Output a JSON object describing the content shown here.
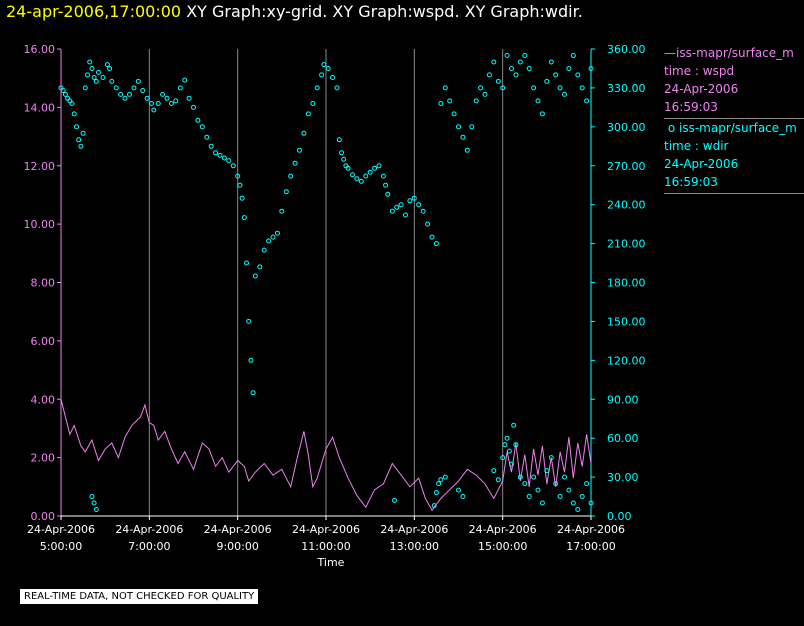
{
  "header": {
    "time_label": "24-apr-2006,17:00:00",
    "graphs_label": "XY Graph:xy-grid.  XY Graph:wspd.  XY Graph:wdir."
  },
  "legend": {
    "series1": {
      "marker": "—",
      "source": "iss-mapr/surface_m",
      "field": "time : wspd",
      "date": "24-Apr-2006",
      "time": "16:59:03"
    },
    "series2": {
      "marker": "o",
      "source": "iss-mapr/surface_m",
      "field": "time : wdir",
      "date": "24-Apr-2006",
      "time": "16:59:03"
    }
  },
  "footer": {
    "note": "REAL-TIME DATA, NOT CHECKED FOR QUALITY"
  },
  "colors": {
    "wspd": "#ee82ee",
    "wdir": "#00ffff",
    "grid": "#888888",
    "title_time": "#ffff00"
  },
  "chart_data": {
    "type": "line",
    "xlabel": "Time",
    "x_ticks": [
      {
        "date": "24-Apr-2006",
        "time": "5:00:00",
        "hour": 5
      },
      {
        "date": "24-Apr-2006",
        "time": "7:00:00",
        "hour": 7
      },
      {
        "date": "24-Apr-2006",
        "time": "9:00:00",
        "hour": 9
      },
      {
        "date": "24-Apr-2006",
        "time": "11:00:00",
        "hour": 11
      },
      {
        "date": "24-Apr-2006",
        "time": "13:00:00",
        "hour": 13
      },
      {
        "date": "24-Apr-2006",
        "time": "15:00:00",
        "hour": 15
      },
      {
        "date": "24-Apr-2006",
        "time": "17:00:00",
        "hour": 17
      }
    ],
    "xlim": [
      5,
      17
    ],
    "left_axis": {
      "ylim": [
        0,
        16
      ],
      "ticks": [
        "0.00",
        "2.00",
        "4.00",
        "6.00",
        "8.00",
        "10.00",
        "12.00",
        "14.00",
        "16.00"
      ]
    },
    "right_axis": {
      "ylim": [
        0,
        360
      ],
      "ticks": [
        "0.00",
        "30.00",
        "60.00",
        "90.00",
        "120.00",
        "150.00",
        "180.00",
        "210.00",
        "240.00",
        "270.00",
        "300.00",
        "330.00",
        "360.00"
      ]
    },
    "grid": "vertical lines at x ticks",
    "series": [
      {
        "name": "iss-mapr/surface_m time : wspd",
        "axis": "left",
        "style": "line",
        "points": [
          [
            5.0,
            4.0
          ],
          [
            5.1,
            3.4
          ],
          [
            5.2,
            2.8
          ],
          [
            5.3,
            3.1
          ],
          [
            5.45,
            2.4
          ],
          [
            5.55,
            2.2
          ],
          [
            5.7,
            2.6
          ],
          [
            5.85,
            1.9
          ],
          [
            6.0,
            2.3
          ],
          [
            6.15,
            2.5
          ],
          [
            6.3,
            2.0
          ],
          [
            6.45,
            2.7
          ],
          [
            6.6,
            3.1
          ],
          [
            6.8,
            3.4
          ],
          [
            6.9,
            3.8
          ],
          [
            7.0,
            3.2
          ],
          [
            7.1,
            3.1
          ],
          [
            7.2,
            2.6
          ],
          [
            7.35,
            2.9
          ],
          [
            7.5,
            2.3
          ],
          [
            7.65,
            1.8
          ],
          [
            7.8,
            2.2
          ],
          [
            8.0,
            1.6
          ],
          [
            8.2,
            2.5
          ],
          [
            8.35,
            2.3
          ],
          [
            8.5,
            1.7
          ],
          [
            8.65,
            2.0
          ],
          [
            8.8,
            1.5
          ],
          [
            9.0,
            1.9
          ],
          [
            9.15,
            1.7
          ],
          [
            9.25,
            1.2
          ],
          [
            9.4,
            1.5
          ],
          [
            9.6,
            1.8
          ],
          [
            9.8,
            1.4
          ],
          [
            10.0,
            1.6
          ],
          [
            10.2,
            1.0
          ],
          [
            10.35,
            2.0
          ],
          [
            10.5,
            2.9
          ],
          [
            10.6,
            2.1
          ],
          [
            10.7,
            1.0
          ],
          [
            10.8,
            1.3
          ],
          [
            10.9,
            1.8
          ],
          [
            11.0,
            2.3
          ],
          [
            11.15,
            2.7
          ],
          [
            11.3,
            2.0
          ],
          [
            11.5,
            1.3
          ],
          [
            11.7,
            0.7
          ],
          [
            11.9,
            0.3
          ],
          [
            12.1,
            0.9
          ],
          [
            12.3,
            1.1
          ],
          [
            12.5,
            1.8
          ],
          [
            12.7,
            1.4
          ],
          [
            12.9,
            1.0
          ],
          [
            13.1,
            1.3
          ],
          [
            13.25,
            0.6
          ],
          [
            13.4,
            0.2
          ],
          [
            13.6,
            0.6
          ],
          [
            13.8,
            0.9
          ],
          [
            14.0,
            1.2
          ],
          [
            14.2,
            1.6
          ],
          [
            14.4,
            1.4
          ],
          [
            14.6,
            1.1
          ],
          [
            14.8,
            0.6
          ],
          [
            15.0,
            1.2
          ],
          [
            15.1,
            2.2
          ],
          [
            15.2,
            1.5
          ],
          [
            15.3,
            2.5
          ],
          [
            15.4,
            1.2
          ],
          [
            15.5,
            2.1
          ],
          [
            15.6,
            1.0
          ],
          [
            15.7,
            2.3
          ],
          [
            15.8,
            1.4
          ],
          [
            15.9,
            2.4
          ],
          [
            16.0,
            1.1
          ],
          [
            16.1,
            2.0
          ],
          [
            16.2,
            1.0
          ],
          [
            16.3,
            2.2
          ],
          [
            16.4,
            1.5
          ],
          [
            16.5,
            2.7
          ],
          [
            16.6,
            1.3
          ],
          [
            16.7,
            2.5
          ],
          [
            16.8,
            1.7
          ],
          [
            16.9,
            2.8
          ],
          [
            17.0,
            1.8
          ]
        ]
      },
      {
        "name": "iss-mapr/surface_m time : wdir",
        "axis": "right",
        "style": "circles",
        "points": [
          [
            5.0,
            330
          ],
          [
            5.05,
            328
          ],
          [
            5.1,
            325
          ],
          [
            5.15,
            322
          ],
          [
            5.2,
            320
          ],
          [
            5.25,
            318
          ],
          [
            5.3,
            310
          ],
          [
            5.35,
            300
          ],
          [
            5.4,
            290
          ],
          [
            5.45,
            285
          ],
          [
            5.5,
            295
          ],
          [
            5.55,
            330
          ],
          [
            5.6,
            340
          ],
          [
            5.65,
            350
          ],
          [
            5.7,
            345
          ],
          [
            5.75,
            338
          ],
          [
            5.8,
            335
          ],
          [
            5.85,
            342
          ],
          [
            5.95,
            338
          ],
          [
            6.05,
            348
          ],
          [
            6.1,
            345
          ],
          [
            6.15,
            335
          ],
          [
            6.25,
            330
          ],
          [
            6.35,
            325
          ],
          [
            6.45,
            322
          ],
          [
            6.55,
            325
          ],
          [
            6.65,
            330
          ],
          [
            6.75,
            335
          ],
          [
            6.85,
            328
          ],
          [
            6.95,
            322
          ],
          [
            7.05,
            318
          ],
          [
            7.1,
            313
          ],
          [
            7.2,
            318
          ],
          [
            7.3,
            325
          ],
          [
            7.4,
            322
          ],
          [
            7.5,
            318
          ],
          [
            7.6,
            320
          ],
          [
            7.7,
            330
          ],
          [
            7.8,
            336
          ],
          [
            7.9,
            322
          ],
          [
            8.0,
            315
          ],
          [
            8.1,
            305
          ],
          [
            8.2,
            300
          ],
          [
            8.3,
            292
          ],
          [
            8.4,
            285
          ],
          [
            8.5,
            280
          ],
          [
            8.6,
            278
          ],
          [
            8.7,
            276
          ],
          [
            8.8,
            274
          ],
          [
            8.9,
            270
          ],
          [
            9.0,
            262
          ],
          [
            9.05,
            255
          ],
          [
            9.1,
            245
          ],
          [
            9.15,
            230
          ],
          [
            9.2,
            195
          ],
          [
            9.25,
            150
          ],
          [
            9.3,
            120
          ],
          [
            9.35,
            95
          ],
          [
            9.4,
            185
          ],
          [
            9.5,
            192
          ],
          [
            9.6,
            205
          ],
          [
            9.7,
            212
          ],
          [
            9.8,
            215
          ],
          [
            9.9,
            218
          ],
          [
            10.0,
            235
          ],
          [
            10.1,
            250
          ],
          [
            10.2,
            262
          ],
          [
            10.3,
            272
          ],
          [
            10.4,
            282
          ],
          [
            10.5,
            295
          ],
          [
            10.6,
            310
          ],
          [
            10.7,
            318
          ],
          [
            10.8,
            330
          ],
          [
            10.9,
            340
          ],
          [
            10.95,
            348
          ],
          [
            11.05,
            345
          ],
          [
            11.15,
            338
          ],
          [
            11.25,
            330
          ],
          [
            11.3,
            290
          ],
          [
            11.35,
            280
          ],
          [
            11.4,
            275
          ],
          [
            11.45,
            270
          ],
          [
            11.5,
            268
          ],
          [
            11.6,
            263
          ],
          [
            11.7,
            260
          ],
          [
            11.8,
            258
          ],
          [
            11.9,
            262
          ],
          [
            12.0,
            265
          ],
          [
            12.1,
            268
          ],
          [
            12.2,
            270
          ],
          [
            12.3,
            262
          ],
          [
            12.35,
            255
          ],
          [
            12.4,
            248
          ],
          [
            12.5,
            235
          ],
          [
            12.6,
            238
          ],
          [
            12.7,
            240
          ],
          [
            12.8,
            232
          ],
          [
            12.9,
            243
          ],
          [
            13.0,
            245
          ],
          [
            13.1,
            240
          ],
          [
            13.2,
            235
          ],
          [
            13.3,
            225
          ],
          [
            13.4,
            215
          ],
          [
            13.5,
            210
          ],
          [
            13.6,
            318
          ],
          [
            13.7,
            330
          ],
          [
            13.8,
            320
          ],
          [
            13.9,
            310
          ],
          [
            14.0,
            300
          ],
          [
            14.1,
            292
          ],
          [
            14.2,
            282
          ],
          [
            14.3,
            300
          ],
          [
            14.4,
            320
          ],
          [
            14.5,
            330
          ],
          [
            14.6,
            325
          ],
          [
            14.7,
            340
          ],
          [
            14.8,
            350
          ],
          [
            14.9,
            335
          ],
          [
            15.0,
            330
          ],
          [
            15.1,
            355
          ],
          [
            15.2,
            345
          ],
          [
            15.3,
            340
          ],
          [
            15.4,
            350
          ],
          [
            15.5,
            355
          ],
          [
            15.6,
            345
          ],
          [
            15.7,
            330
          ],
          [
            15.8,
            320
          ],
          [
            15.9,
            310
          ],
          [
            16.0,
            335
          ],
          [
            16.1,
            350
          ],
          [
            16.2,
            340
          ],
          [
            16.3,
            330
          ],
          [
            16.4,
            325
          ],
          [
            16.5,
            345
          ],
          [
            16.6,
            355
          ],
          [
            16.7,
            340
          ],
          [
            16.8,
            330
          ],
          [
            16.9,
            320
          ],
          [
            17.0,
            345
          ],
          [
            5.7,
            15
          ],
          [
            5.75,
            10
          ],
          [
            5.8,
            5
          ],
          [
            12.55,
            12
          ],
          [
            13.45,
            8
          ],
          [
            13.5,
            18
          ],
          [
            13.55,
            25
          ],
          [
            13.6,
            28
          ],
          [
            13.7,
            30
          ],
          [
            14.0,
            20
          ],
          [
            14.1,
            15
          ],
          [
            14.8,
            35
          ],
          [
            14.9,
            28
          ],
          [
            15.0,
            45
          ],
          [
            15.05,
            55
          ],
          [
            15.1,
            60
          ],
          [
            15.15,
            50
          ],
          [
            15.2,
            40
          ],
          [
            15.25,
            70
          ],
          [
            15.3,
            55
          ],
          [
            15.4,
            30
          ],
          [
            15.5,
            25
          ],
          [
            15.6,
            15
          ],
          [
            15.7,
            30
          ],
          [
            15.8,
            20
          ],
          [
            15.9,
            10
          ],
          [
            16.0,
            35
          ],
          [
            16.1,
            45
          ],
          [
            16.2,
            25
          ],
          [
            16.3,
            15
          ],
          [
            16.4,
            30
          ],
          [
            16.5,
            20
          ],
          [
            16.6,
            10
          ],
          [
            16.7,
            5
          ],
          [
            16.8,
            15
          ],
          [
            16.9,
            25
          ],
          [
            17.0,
            10
          ]
        ]
      }
    ]
  }
}
